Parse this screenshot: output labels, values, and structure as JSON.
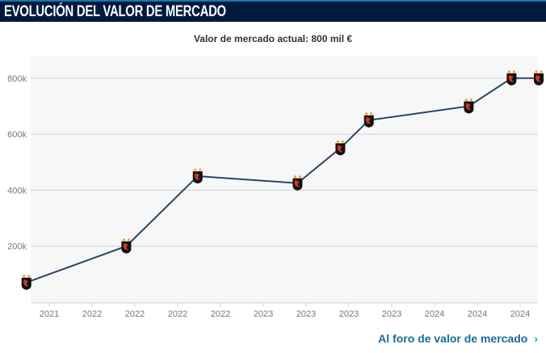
{
  "header": {
    "title": "EVOLUCIÓN DEL VALOR DE MERCADO"
  },
  "subtitle": "Valor de mercado actual: 800 mil €",
  "link": {
    "label": "Al foro de valor de mercado",
    "icon": "chevron-right-icon"
  },
  "colors": {
    "header_bg": "#001a3f",
    "line": "#2b4466",
    "plot_bg": "#f7f7f8",
    "link": "#1a6b9a"
  },
  "chart_data": {
    "type": "line",
    "title": "",
    "xlabel": "",
    "ylabel": "",
    "x_ticks": [
      "2021",
      "2022",
      "2022",
      "2022",
      "2022",
      "2023",
      "2023",
      "2023",
      "2023",
      "2024",
      "2024",
      "2024"
    ],
    "y_ticks": [
      "200k",
      "400k",
      "600k",
      "800k"
    ],
    "ylim": [
      0,
      800000
    ],
    "grid": true,
    "marker": "club-crest",
    "points": [
      {
        "x": "2021-08",
        "y": 70000
      },
      {
        "x": "2022-03",
        "y": 200000
      },
      {
        "x": "2022-08",
        "y": 450000
      },
      {
        "x": "2023-03",
        "y": 425000
      },
      {
        "x": "2023-06",
        "y": 550000
      },
      {
        "x": "2023-08",
        "y": 650000
      },
      {
        "x": "2024-03",
        "y": 700000
      },
      {
        "x": "2024-06",
        "y": 800000
      },
      {
        "x": "2024-08",
        "y": 800000
      }
    ]
  }
}
